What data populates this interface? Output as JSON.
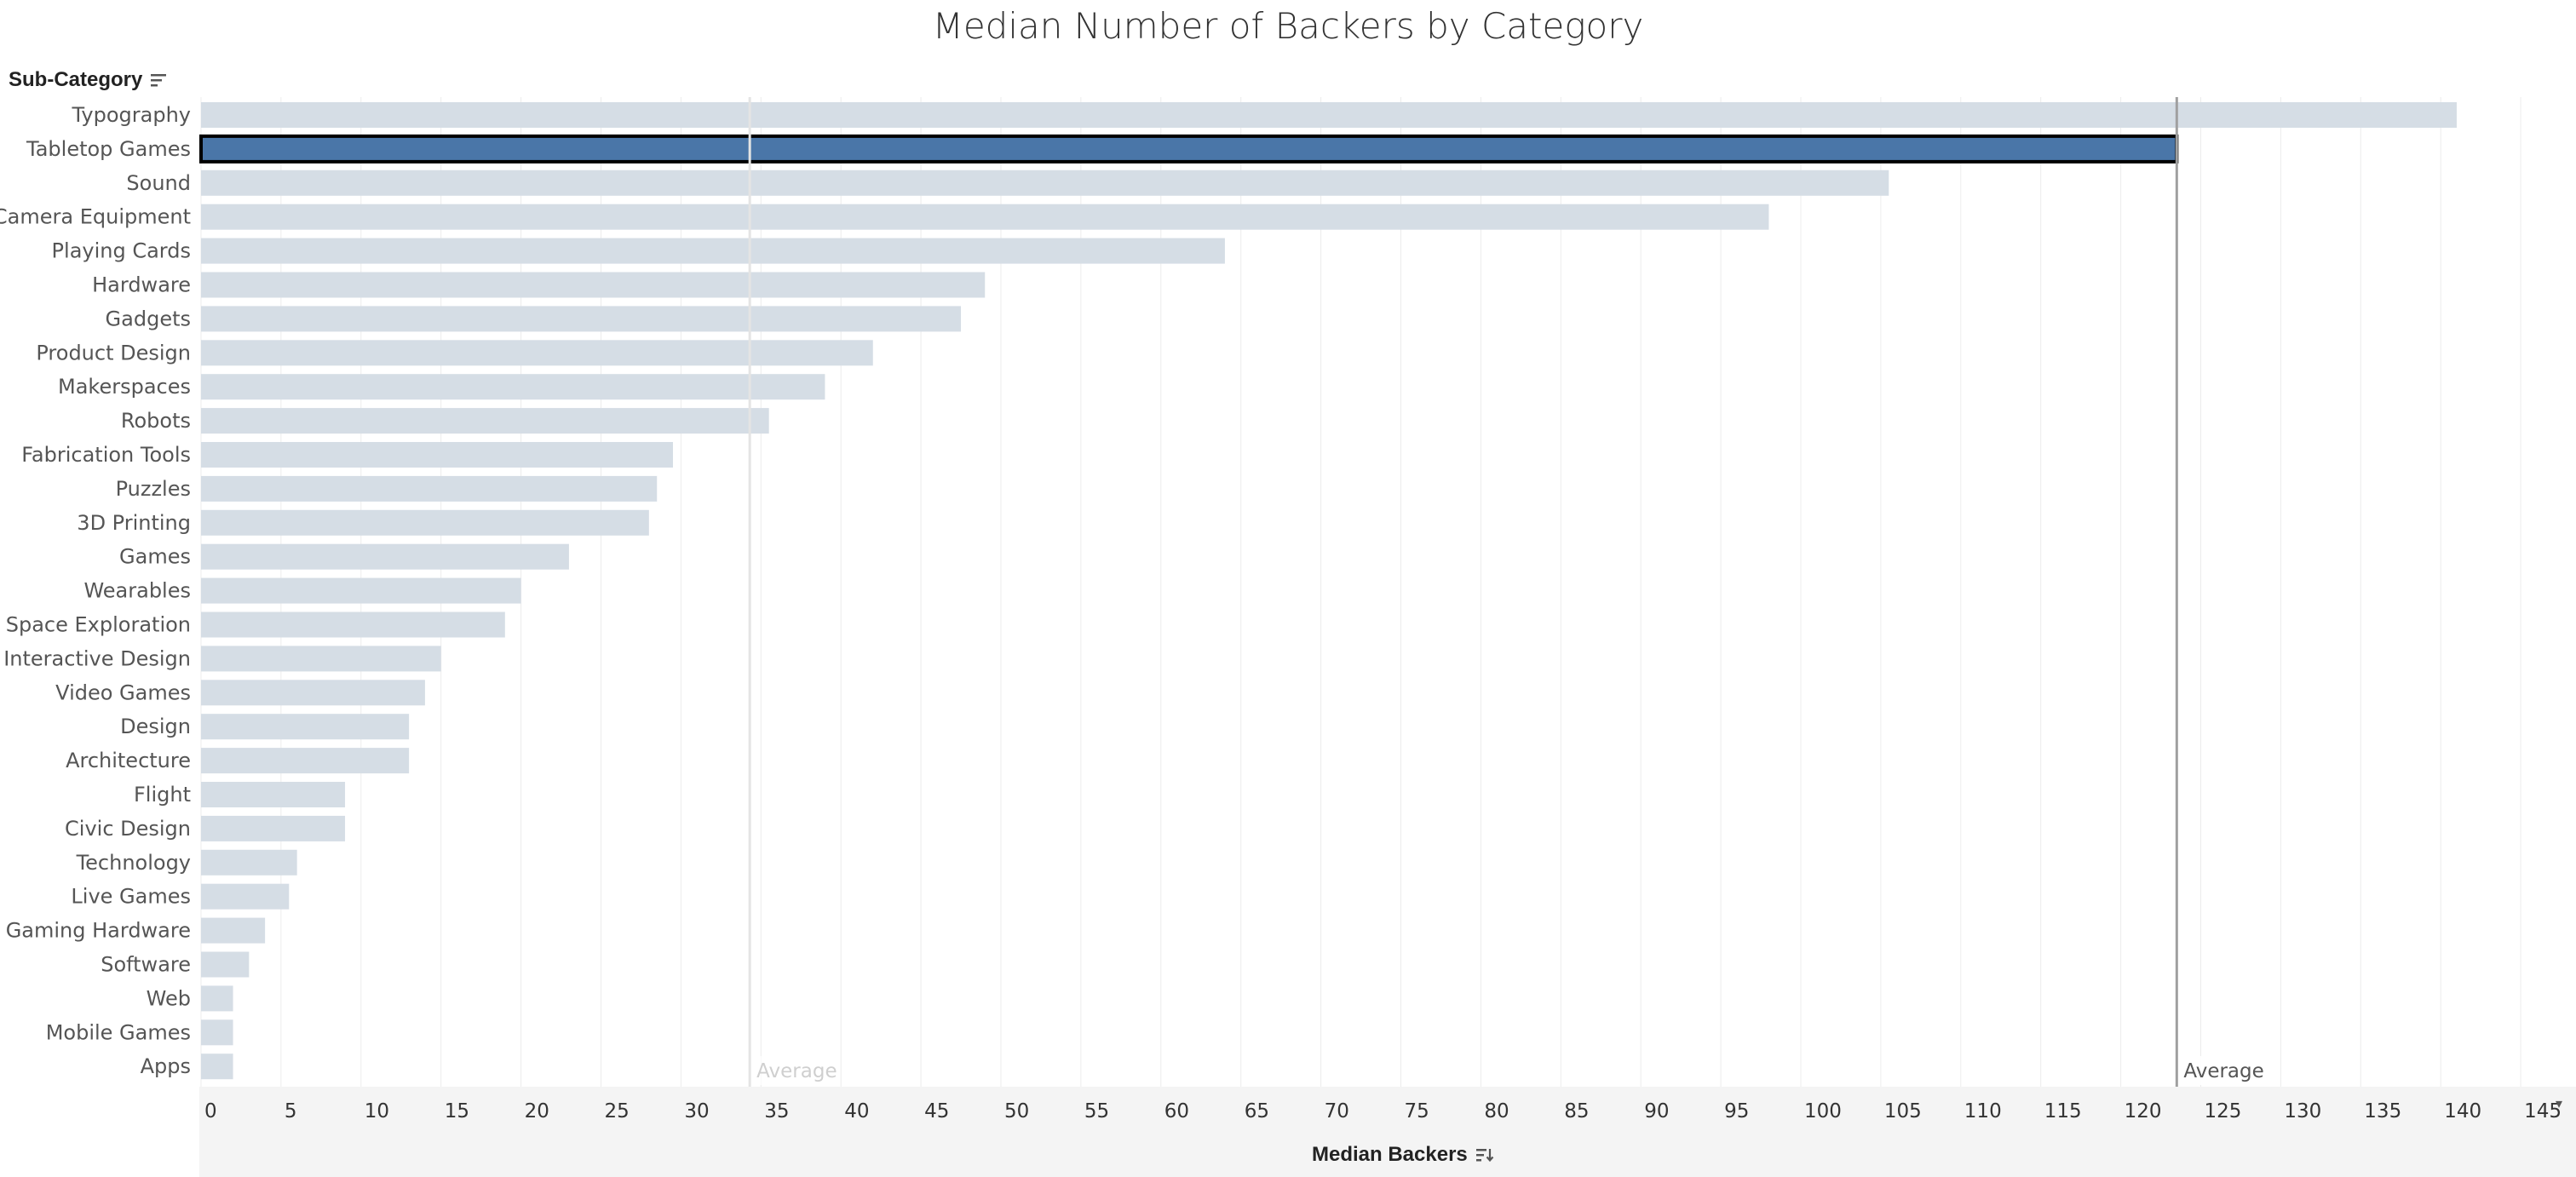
{
  "title": "Median Number of Backers by Category",
  "row_header": "Sub-Category",
  "chart_data": {
    "type": "bar",
    "orientation": "horizontal",
    "title": "Median Number of Backers by Category",
    "ylabel": "Sub-Category",
    "xlabel": "Median Backers",
    "xlim": [
      0,
      148
    ],
    "xticks": [
      0,
      5,
      10,
      15,
      20,
      25,
      30,
      35,
      40,
      45,
      50,
      55,
      60,
      65,
      70,
      75,
      80,
      85,
      90,
      95,
      100,
      105,
      110,
      115,
      120,
      125,
      130,
      135,
      140,
      145
    ],
    "grid": true,
    "categories": [
      "Typography",
      "Tabletop Games",
      "Sound",
      "Camera Equipment",
      "Playing Cards",
      "Hardware",
      "Gadgets",
      "Product Design",
      "Makerspaces",
      "Robots",
      "Fabrication Tools",
      "Puzzles",
      "3D Printing",
      "Games",
      "Wearables",
      "Space Exploration",
      "Interactive Design",
      "Video Games",
      "Design",
      "Architecture",
      "Flight",
      "Civic Design",
      "Technology",
      "Live Games",
      "Gaming Hardware",
      "Software",
      "Web",
      "Mobile Games",
      "Apps"
    ],
    "values": [
      141,
      123.5,
      105.5,
      98,
      64,
      49,
      47.5,
      42,
      39,
      35.5,
      29.5,
      28.5,
      28,
      23,
      20,
      19,
      15,
      14,
      13,
      13,
      9,
      9,
      6,
      5.5,
      4,
      3,
      2,
      2,
      2
    ],
    "highlighted": "Tabletop Games",
    "reference_lines": [
      {
        "label": "Average",
        "value": 34.3,
        "emphasis": "faded"
      },
      {
        "label": "Average",
        "value": 123.5,
        "emphasis": "strong"
      }
    ],
    "colors": {
      "bar": "#d5dde5",
      "highlight": "#4a76a8",
      "highlight_border": "#000000",
      "gridline": "#ececec",
      "ref_strong": "#a0a0a0",
      "ref_faded": "#e4e4e4"
    }
  },
  "axis": {
    "title": "Median Backers",
    "sort_icon": "sort-descending-icon",
    "caret_icon": "dropdown-caret-icon"
  }
}
